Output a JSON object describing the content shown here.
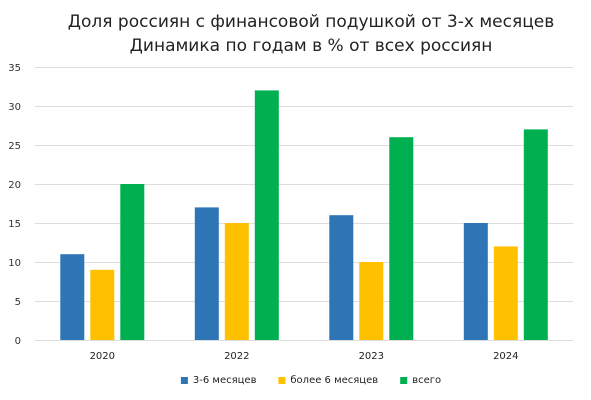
{
  "chart_data": {
    "type": "bar",
    "title": "Доля россиян с финансовой подушкой от 3-х месяцев",
    "subtitle": "Динамика по годам в % от всех россиян",
    "categories": [
      "2020",
      "2022",
      "2023",
      "2024"
    ],
    "series": [
      {
        "name": "3-6 месяцев",
        "color": "#2e75b6",
        "values": [
          11,
          17,
          16,
          15
        ]
      },
      {
        "name": "более 6 месяцев",
        "color": "#ffc000",
        "values": [
          9,
          15,
          10,
          12
        ]
      },
      {
        "name": "всего",
        "color": "#00b050",
        "values": [
          20,
          32,
          26,
          27
        ]
      }
    ],
    "ylim": [
      0,
      35
    ],
    "yticks": [
      0,
      5,
      10,
      15,
      20,
      25,
      30,
      35
    ],
    "xlabel": "",
    "ylabel": "",
    "grid": true,
    "legend_position": "bottom"
  }
}
